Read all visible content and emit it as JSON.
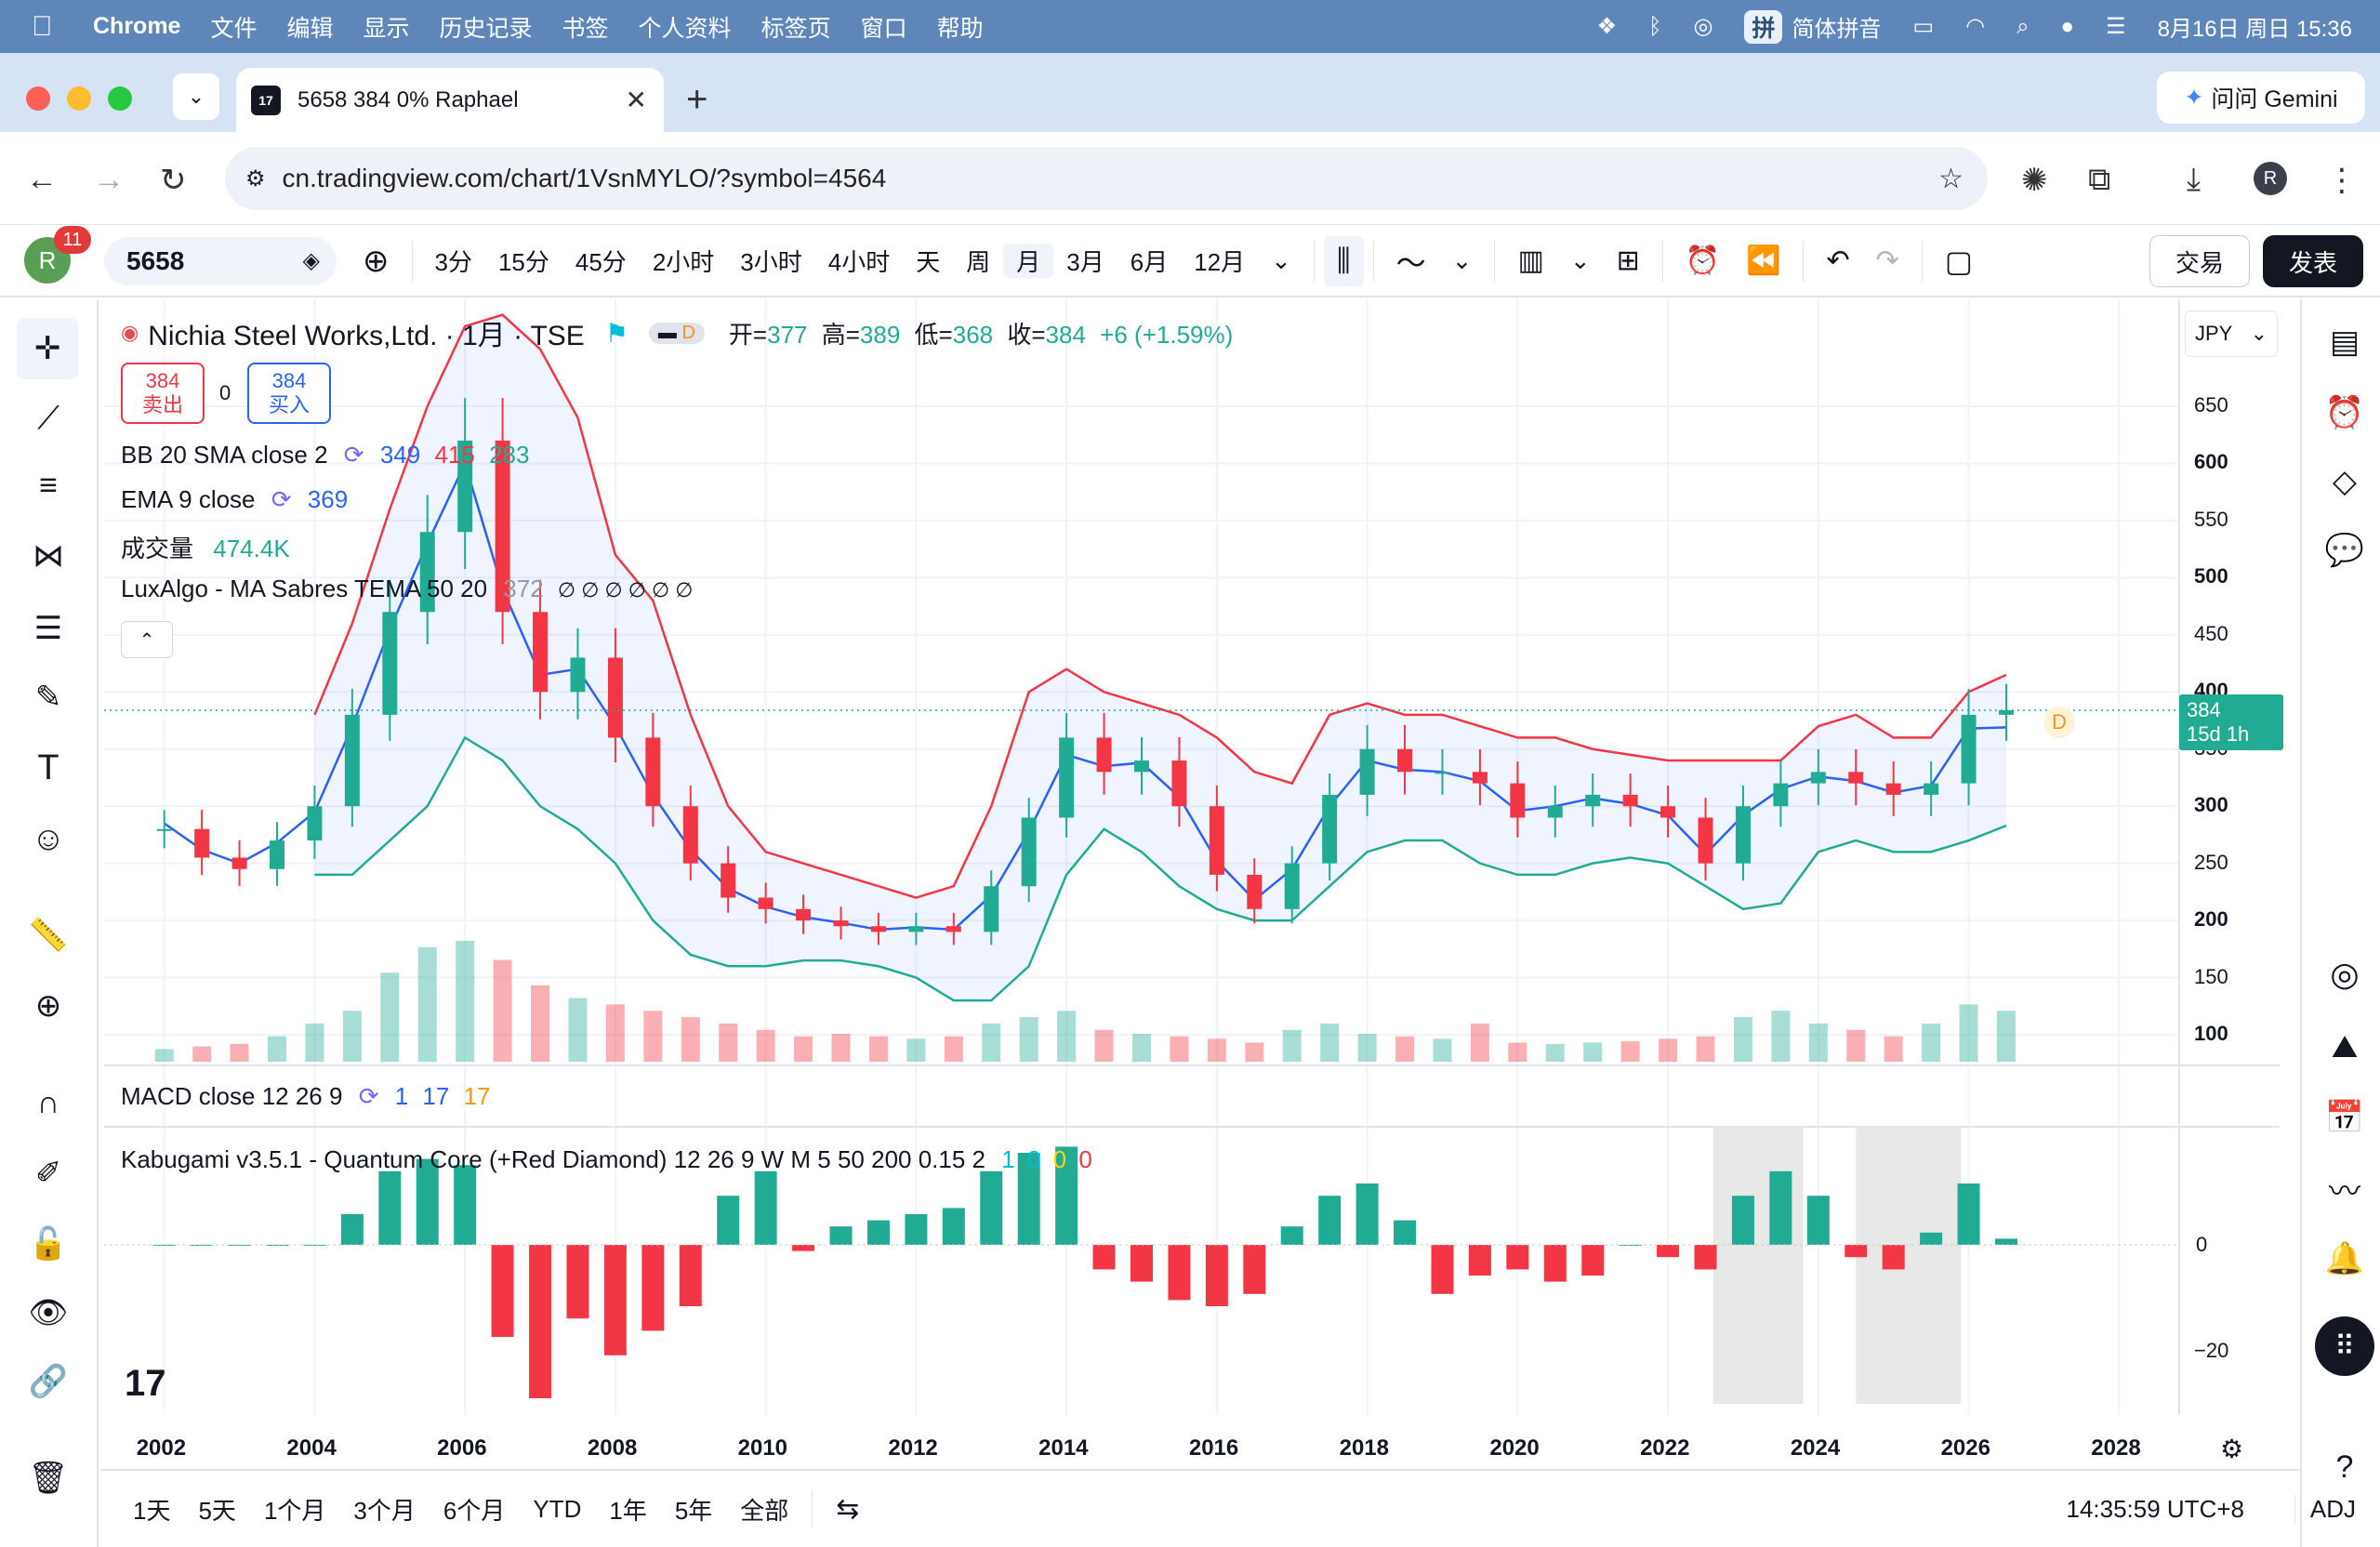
{
  "menubar": {
    "app": "Chrome",
    "items": [
      "文件",
      "编辑",
      "显示",
      "历史记录",
      "书签",
      "个人资料",
      "标签页",
      "窗口",
      "帮助"
    ],
    "ime": "简体拼音",
    "datetime": "8月16日 周日 15:36"
  },
  "browser": {
    "tab_title": "5658 384 0% Raphael",
    "tab_favicon": "17",
    "gemini": "问问 Gemini",
    "url": "cn.tradingview.com/chart/1VsnMYLO/?symbol=4564",
    "profile": "R"
  },
  "toolbar": {
    "avatar": "R",
    "notif_count": "11",
    "symbol": "5658",
    "timeframes": [
      "3分",
      "15分",
      "45分",
      "2小时",
      "3小时",
      "4小时",
      "天",
      "周",
      "月",
      "3月",
      "6月",
      "12月"
    ],
    "active_timeframe": "月",
    "trade": "交易",
    "post": "发表"
  },
  "legend": {
    "title": "Nichia Steel Works,Ltd. · 1月 · TSE",
    "d_badge": "D",
    "open_label": "开=",
    "open": "377",
    "high_label": "高=",
    "high": "389",
    "low_label": "低=",
    "low": "368",
    "close_label": "收=",
    "close": "384",
    "change": "+6 (+1.59%)",
    "sell_price": "384",
    "sell_label": "卖出",
    "spread": "0",
    "buy_price": "384",
    "buy_label": "买入",
    "bb": {
      "name": "BB 20 SMA close 2",
      "v1": "349",
      "v2": "415",
      "v3": "283"
    },
    "ema": {
      "name": "EMA 9 close",
      "v": "369"
    },
    "vol": {
      "name": "成交量",
      "v": "474.4K"
    },
    "lux": {
      "name": "LuxAlgo - MA Sabres TEMA 50 20",
      "v": "372",
      "tail": "∅ ∅ ∅ ∅ ∅ ∅"
    },
    "macd": {
      "name": "MACD close 12 26 9",
      "v1": "1",
      "v2": "17",
      "v3": "17"
    },
    "kabu": {
      "name": "Kabugami v3.5.1 - Quantum Core (+Red Diamond) 12 26 9 W M 5 50 200 0.15 2",
      "v1": "1",
      "v2": "0",
      "v3": "0",
      "v4": "0"
    }
  },
  "price_axis": {
    "currency": "JPY",
    "ticks": [
      "650",
      "600",
      "550",
      "500",
      "450",
      "400",
      "350",
      "300",
      "250",
      "200",
      "150",
      "100"
    ],
    "current": "384",
    "countdown": "15d 1h"
  },
  "osc_axis": {
    "ticks": [
      "0",
      "−20"
    ]
  },
  "time_axis": {
    "years": [
      "2002",
      "2004",
      "2006",
      "2008",
      "2010",
      "2012",
      "2014",
      "2016",
      "2018",
      "2020",
      "2022",
      "2024",
      "2026",
      "2028"
    ]
  },
  "bottom": {
    "ranges": [
      "1天",
      "5天",
      "1个月",
      "3个月",
      "6个月",
      "YTD",
      "1年",
      "5年",
      "全部"
    ],
    "time": "14:35:59 UTC+8",
    "adj": "ADJ"
  },
  "colors": {
    "up": "#22ab94",
    "down": "#f23645",
    "bb_upper": "#f23645",
    "bb_lower": "#22ab94",
    "bb_basis": "#2962ff",
    "ema": "#2962ff"
  },
  "chart_data": {
    "type": "candlestick",
    "x": [
      2002.0,
      2002.5,
      2003.0,
      2003.5,
      2004.0,
      2004.5,
      2005.0,
      2005.5,
      2006.0,
      2006.5,
      2007.0,
      2007.5,
      2008.0,
      2008.5,
      2009.0,
      2009.5,
      2010.0,
      2010.5,
      2011.0,
      2011.5,
      2012.0,
      2012.5,
      2013.0,
      2013.5,
      2014.0,
      2014.5,
      2015.0,
      2015.5,
      2016.0,
      2016.5,
      2017.0,
      2017.5,
      2018.0,
      2018.5,
      2019.0,
      2019.5,
      2020.0,
      2020.5,
      2021.0,
      2021.5,
      2022.0,
      2022.5,
      2023.0,
      2023.5,
      2024.0,
      2024.5,
      2025.0,
      2025.5,
      2026.0,
      2026.5
    ],
    "close": [
      280,
      255,
      245,
      270,
      300,
      380,
      470,
      540,
      620,
      470,
      400,
      430,
      360,
      300,
      250,
      220,
      210,
      200,
      195,
      190,
      195,
      190,
      230,
      290,
      360,
      330,
      340,
      300,
      240,
      210,
      250,
      310,
      350,
      330,
      330,
      320,
      290,
      300,
      310,
      300,
      290,
      250,
      300,
      320,
      330,
      320,
      310,
      320,
      380,
      384
    ],
    "volume": [
      10,
      12,
      14,
      20,
      30,
      40,
      70,
      90,
      95,
      80,
      60,
      50,
      45,
      40,
      35,
      30,
      25,
      20,
      22,
      20,
      18,
      20,
      30,
      35,
      40,
      25,
      22,
      20,
      18,
      15,
      25,
      30,
      22,
      20,
      18,
      30,
      15,
      14,
      15,
      16,
      18,
      20,
      35,
      40,
      30,
      25,
      20,
      30,
      45,
      40
    ],
    "bb_upper": [
      null,
      null,
      null,
      null,
      380,
      460,
      560,
      650,
      720,
      730,
      700,
      640,
      520,
      480,
      380,
      300,
      260,
      250,
      240,
      230,
      220,
      230,
      300,
      400,
      420,
      400,
      390,
      380,
      360,
      330,
      320,
      380,
      390,
      380,
      380,
      370,
      360,
      360,
      350,
      345,
      340,
      340,
      340,
      340,
      370,
      380,
      360,
      360,
      400,
      415
    ],
    "bb_lower": [
      null,
      null,
      null,
      null,
      240,
      240,
      270,
      300,
      360,
      340,
      300,
      280,
      250,
      200,
      170,
      160,
      160,
      165,
      165,
      160,
      150,
      130,
      130,
      160,
      240,
      280,
      260,
      230,
      210,
      200,
      200,
      230,
      260,
      270,
      270,
      250,
      240,
      240,
      250,
      255,
      250,
      230,
      210,
      215,
      260,
      270,
      260,
      260,
      270,
      283
    ],
    "ema": [
      285,
      262,
      250,
      268,
      295,
      370,
      455,
      530,
      600,
      490,
      415,
      420,
      370,
      310,
      262,
      228,
      212,
      203,
      198,
      192,
      194,
      192,
      222,
      278,
      345,
      335,
      338,
      308,
      252,
      218,
      245,
      300,
      340,
      332,
      330,
      322,
      296,
      300,
      307,
      302,
      292,
      258,
      292,
      315,
      326,
      322,
      312,
      318,
      368,
      369
    ],
    "macd_hist": [
      0,
      0,
      0,
      0,
      0,
      5,
      12,
      14,
      13,
      -15,
      -25,
      -12,
      -18,
      -14,
      -10,
      8,
      12,
      -1,
      3,
      4,
      5,
      6,
      12,
      15,
      16,
      -4,
      -6,
      -9,
      -10,
      -8,
      3,
      8,
      10,
      4,
      -8,
      -5,
      -4,
      -6,
      -5,
      0,
      -2,
      -4,
      8,
      12,
      8,
      -2,
      -4,
      2,
      10,
      1
    ],
    "ylim": [
      80,
      680
    ],
    "xlim": [
      2001.2,
      2028.8
    ]
  }
}
